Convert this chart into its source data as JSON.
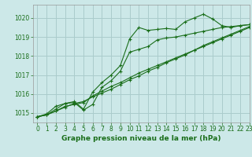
{
  "title": "Graphe pression niveau de la mer (hPa)",
  "bg_color": "#cce8e8",
  "grid_color": "#aacccc",
  "line_color": "#1a6e1a",
  "xlim": [
    -0.5,
    23
  ],
  "ylim": [
    1014.5,
    1020.7
  ],
  "yticks": [
    1015,
    1016,
    1017,
    1018,
    1019,
    1020
  ],
  "xticks": [
    0,
    1,
    2,
    3,
    4,
    5,
    6,
    7,
    8,
    9,
    10,
    11,
    12,
    13,
    14,
    15,
    16,
    17,
    18,
    19,
    20,
    21,
    22,
    23
  ],
  "series": [
    [
      1014.8,
      1014.9,
      1015.2,
      1015.5,
      1015.6,
      1015.2,
      1016.1,
      1016.6,
      1017.0,
      1017.5,
      1018.9,
      1019.5,
      1019.35,
      1019.4,
      1019.45,
      1019.4,
      1019.8,
      1020.0,
      1020.2,
      1019.95,
      1019.6,
      1019.5,
      1019.6,
      1019.65
    ],
    [
      1014.8,
      1014.95,
      1015.35,
      1015.5,
      1015.55,
      1015.15,
      1015.45,
      1016.35,
      1016.7,
      1017.2,
      1018.2,
      1018.35,
      1018.5,
      1018.85,
      1018.95,
      1019.0,
      1019.1,
      1019.2,
      1019.3,
      1019.4,
      1019.5,
      1019.55,
      1019.6,
      1019.65
    ],
    [
      1014.8,
      1014.9,
      1015.1,
      1015.35,
      1015.45,
      1015.55,
      1015.9,
      1016.15,
      1016.4,
      1016.6,
      1016.85,
      1017.1,
      1017.3,
      1017.5,
      1017.7,
      1017.9,
      1018.1,
      1018.3,
      1018.55,
      1018.75,
      1018.95,
      1019.15,
      1019.35,
      1019.55
    ],
    [
      1014.8,
      1014.9,
      1015.1,
      1015.3,
      1015.5,
      1015.6,
      1015.85,
      1016.05,
      1016.25,
      1016.5,
      1016.75,
      1016.95,
      1017.2,
      1017.4,
      1017.65,
      1017.85,
      1018.05,
      1018.3,
      1018.5,
      1018.7,
      1018.9,
      1019.1,
      1019.3,
      1019.5
    ]
  ],
  "title_fontsize": 6.5,
  "tick_fontsize": 5.5,
  "label_color": "#1a6e1a"
}
